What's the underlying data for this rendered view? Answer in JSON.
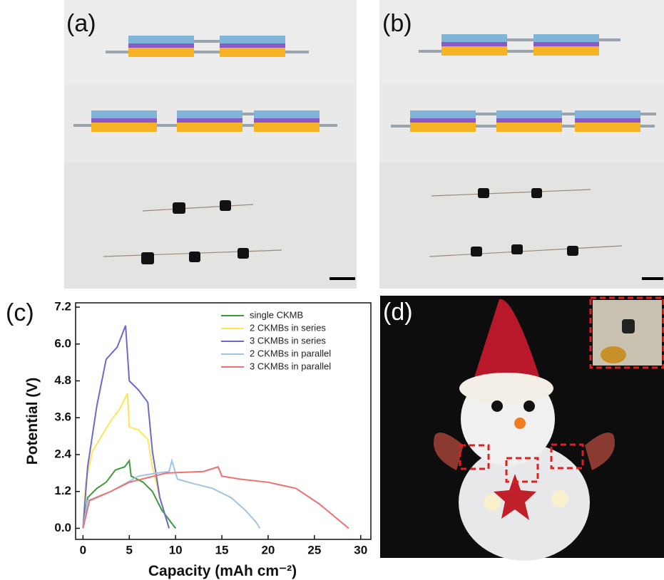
{
  "panels": [
    "(a)",
    "(b)",
    "(c)",
    "(d)"
  ],
  "chart_data": {
    "type": "line",
    "xlabel": "Capacity (mAh cm⁻²)",
    "ylabel": "Potential (V)",
    "xlim": [
      -0.8,
      31.1
    ],
    "ylim": [
      -0.36,
      7.34
    ],
    "xticks": [
      0,
      5,
      10,
      15,
      20,
      25,
      30
    ],
    "yticks": [
      {
        "value": 0,
        "label": "0.0"
      },
      1.2,
      2.4,
      3.6,
      4.8,
      {
        "value": 6,
        "label": "6.0"
      },
      7.2
    ],
    "legend": "upper right",
    "series": [
      {
        "name": "single CKMB",
        "color": "#3c9a3c",
        "x": [
          0,
          0.5,
          1.5,
          2.5,
          3.5,
          4.5,
          5,
          5.2,
          6.5,
          7.5,
          8.5,
          9.5,
          10
        ],
        "values": [
          0,
          1.0,
          1.3,
          1.5,
          1.9,
          2.0,
          2.2,
          1.7,
          1.5,
          1.2,
          0.6,
          0.2,
          0
        ]
      },
      {
        "name": "2 CKMBs in series",
        "color": "#ffe45a",
        "x": [
          0,
          0.3,
          1,
          2,
          3,
          4,
          4.8,
          5,
          6,
          7,
          7.5,
          8.3,
          9,
          9.3
        ],
        "values": [
          0,
          1.5,
          2.5,
          3.0,
          3.5,
          3.9,
          4.4,
          3.3,
          3.2,
          2.9,
          2.0,
          1.0,
          0.3,
          0
        ]
      },
      {
        "name": "3 CKMBs in series",
        "color": "#6a6acc",
        "x": [
          0,
          0.5,
          1.5,
          2.5,
          3.7,
          4.6,
          5,
          6,
          7,
          7.5,
          8.3,
          9,
          9.3
        ],
        "values": [
          0,
          2.0,
          4.0,
          5.5,
          5.9,
          6.6,
          4.8,
          4.5,
          4.1,
          2.5,
          1.0,
          0.3,
          0
        ]
      },
      {
        "name": "2 CKMBs in parallel",
        "color": "#9ec4e6",
        "x": [
          0,
          0.5,
          3,
          6,
          8,
          9.3,
          9.6,
          10.2,
          12,
          14,
          16,
          17.5,
          18.7,
          19.1
        ],
        "values": [
          0,
          0.9,
          1.2,
          1.7,
          1.8,
          1.85,
          2.2,
          1.6,
          1.45,
          1.3,
          1.0,
          0.6,
          0.2,
          0
        ]
      },
      {
        "name": "3 CKMBs in parallel",
        "color": "#f07070",
        "x": [
          0,
          0.7,
          3,
          5,
          9,
          13,
          14.6,
          15,
          17,
          20,
          23,
          25.5,
          27.5,
          28.7
        ],
        "values": [
          0,
          0.9,
          1.2,
          1.5,
          1.8,
          1.85,
          2.0,
          1.7,
          1.6,
          1.5,
          1.3,
          0.8,
          0.3,
          0
        ]
      }
    ]
  }
}
